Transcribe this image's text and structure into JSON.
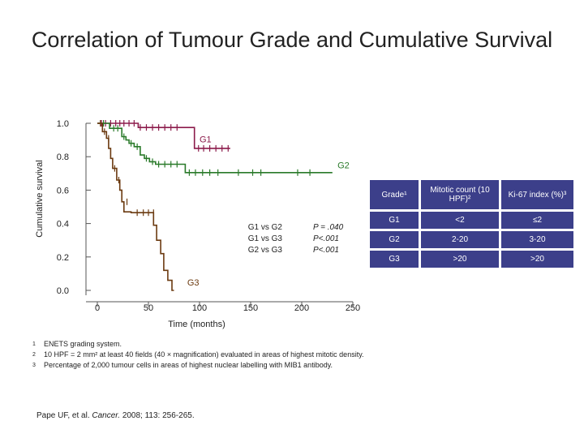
{
  "title": "Correlation of Tumour Grade and Cumulative Survival",
  "chart_data": {
    "type": "line",
    "subtype": "kaplan-meier",
    "xlabel": "Time (months)",
    "ylabel": "Cumulative survival",
    "xlim": [
      0,
      250
    ],
    "ylim": [
      0,
      1.0
    ],
    "x_ticks": [
      "0",
      "50",
      "100",
      "150",
      "200",
      "250"
    ],
    "y_ticks": [
      "0.0",
      "0.2",
      "0.4",
      "0.6",
      "0.8",
      "1.0"
    ],
    "series": [
      {
        "name": "G1",
        "color": "#8b1a4a",
        "steps": [
          [
            0,
            1.0
          ],
          [
            40,
            1.0
          ],
          [
            40,
            0.975
          ],
          [
            95,
            0.975
          ],
          [
            95,
            0.85
          ],
          [
            130,
            0.85
          ]
        ],
        "censors": [
          [
            4,
            1.0
          ],
          [
            8,
            1.0
          ],
          [
            13,
            1.0
          ],
          [
            18,
            1.0
          ],
          [
            22,
            1.0
          ],
          [
            26,
            1.0
          ],
          [
            31,
            1.0
          ],
          [
            36,
            1.0
          ],
          [
            42,
            0.975
          ],
          [
            48,
            0.975
          ],
          [
            54,
            0.975
          ],
          [
            60,
            0.975
          ],
          [
            66,
            0.975
          ],
          [
            72,
            0.975
          ],
          [
            78,
            0.975
          ],
          [
            99,
            0.85
          ],
          [
            104,
            0.85
          ],
          [
            110,
            0.85
          ],
          [
            116,
            0.85
          ],
          [
            122,
            0.85
          ],
          [
            128,
            0.85
          ]
        ]
      },
      {
        "name": "G2",
        "color": "#2a7a2a",
        "steps": [
          [
            0,
            1.0
          ],
          [
            12,
            1.0
          ],
          [
            12,
            0.97
          ],
          [
            24,
            0.97
          ],
          [
            24,
            0.92
          ],
          [
            28,
            0.92
          ],
          [
            28,
            0.9
          ],
          [
            31,
            0.9
          ],
          [
            31,
            0.88
          ],
          [
            36,
            0.88
          ],
          [
            36,
            0.86
          ],
          [
            42,
            0.86
          ],
          [
            42,
            0.81
          ],
          [
            46,
            0.81
          ],
          [
            46,
            0.79
          ],
          [
            51,
            0.79
          ],
          [
            51,
            0.77
          ],
          [
            57,
            0.77
          ],
          [
            57,
            0.755
          ],
          [
            86,
            0.755
          ],
          [
            86,
            0.705
          ],
          [
            230,
            0.705
          ]
        ],
        "censors": [
          [
            6,
            1.0
          ],
          [
            16,
            0.97
          ],
          [
            20,
            0.97
          ],
          [
            26,
            0.92
          ],
          [
            33,
            0.88
          ],
          [
            39,
            0.86
          ],
          [
            48,
            0.79
          ],
          [
            54,
            0.77
          ],
          [
            60,
            0.755
          ],
          [
            66,
            0.755
          ],
          [
            72,
            0.755
          ],
          [
            78,
            0.755
          ],
          [
            90,
            0.705
          ],
          [
            96,
            0.705
          ],
          [
            103,
            0.705
          ],
          [
            110,
            0.705
          ],
          [
            118,
            0.705
          ],
          [
            138,
            0.705
          ],
          [
            152,
            0.705
          ],
          [
            160,
            0.705
          ],
          [
            196,
            0.705
          ],
          [
            208,
            0.705
          ]
        ]
      },
      {
        "name": "G3",
        "color": "#6b3a10",
        "steps": [
          [
            0,
            1.0
          ],
          [
            5,
            1.0
          ],
          [
            5,
            0.95
          ],
          [
            9,
            0.95
          ],
          [
            9,
            0.91
          ],
          [
            11,
            0.91
          ],
          [
            11,
            0.85
          ],
          [
            13,
            0.85
          ],
          [
            13,
            0.79
          ],
          [
            15,
            0.79
          ],
          [
            15,
            0.73
          ],
          [
            19,
            0.73
          ],
          [
            19,
            0.66
          ],
          [
            22,
            0.66
          ],
          [
            22,
            0.6
          ],
          [
            24,
            0.6
          ],
          [
            24,
            0.53
          ],
          [
            26,
            0.53
          ],
          [
            26,
            0.47
          ],
          [
            33,
            0.47
          ],
          [
            33,
            0.465
          ],
          [
            55,
            0.465
          ],
          [
            55,
            0.39
          ],
          [
            58,
            0.39
          ],
          [
            58,
            0.3
          ],
          [
            62,
            0.3
          ],
          [
            62,
            0.22
          ],
          [
            65,
            0.22
          ],
          [
            65,
            0.12
          ],
          [
            69,
            0.12
          ],
          [
            69,
            0.06
          ],
          [
            73,
            0.06
          ],
          [
            73,
            0.0
          ],
          [
            75,
            0.0
          ]
        ],
        "censors": [
          [
            3,
            1.0
          ],
          [
            7,
            0.95
          ],
          [
            11,
            0.91
          ],
          [
            17,
            0.73
          ],
          [
            21,
            0.66
          ],
          [
            29,
            0.53
          ],
          [
            39,
            0.465
          ],
          [
            45,
            0.465
          ],
          [
            50,
            0.465
          ],
          [
            55,
            0.465
          ]
        ]
      }
    ],
    "series_labels": {
      "G1": "G1",
      "G2": "G2",
      "G3": "G3"
    },
    "comparisons": [
      {
        "pair": "G1 vs G2",
        "p": "P = .040"
      },
      {
        "pair": "G1 vs G3",
        "p": "P<.001"
      },
      {
        "pair": "G2 vs G3",
        "p": "P<.001"
      }
    ]
  },
  "table": {
    "headers": [
      "Grade¹",
      "Mitotic count (10 HPF)²",
      "Ki-67 index (%)³"
    ],
    "rows": [
      [
        "G1",
        "<2",
        "≤2"
      ],
      [
        "G2",
        "2-20",
        "3-20"
      ],
      [
        "G3",
        ">20",
        ">20"
      ]
    ]
  },
  "footnotes": [
    {
      "mark": "1",
      "text": "ENETS grading system."
    },
    {
      "mark": "2",
      "text": "10 HPF = 2 mm² at least 40 fields (40 × magnification) evaluated in areas of highest mitotic density."
    },
    {
      "mark": "3",
      "text": "Percentage of 2,000 tumour cells in areas of highest nuclear labelling with MIB1 antibody."
    }
  ],
  "citation": {
    "authors": "Pape UF, et al.",
    "journal": "Cancer.",
    "details": "2008; 113: 256-265."
  },
  "colors": {
    "table_bg": "#3c3f8a",
    "g1": "#8b1a4a",
    "g2": "#2a7a2a",
    "g3": "#6b3a10"
  }
}
